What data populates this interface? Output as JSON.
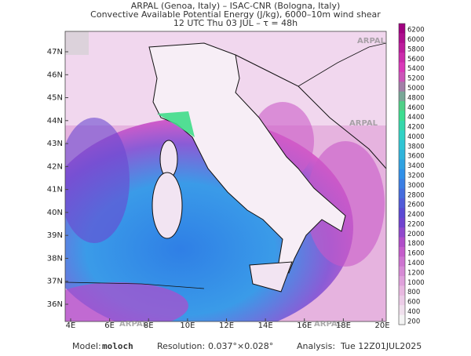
{
  "header": {
    "lines": [
      "ARPAL (Genoa, Italy)  –  ISAC-CNR (Bologna, Italy)",
      "Convective Available Potential Energy (J/kg), 6000–10m wind shear",
      "12 UTC Thu 03 JUL  –  τ = 48h"
    ]
  },
  "map": {
    "lon_labels": [
      "4E",
      "6E",
      "8E",
      "10E",
      "12E",
      "14E",
      "16E",
      "18E",
      "20E"
    ],
    "lat_labels": [
      "47N",
      "46N",
      "45N",
      "44N",
      "43N",
      "42N",
      "41N",
      "40N",
      "39N",
      "38N",
      "37N",
      "36N"
    ],
    "watermark": "ARPAL"
  },
  "colorbar": {
    "labels": [
      6200,
      6000,
      5800,
      5600,
      5400,
      5200,
      5000,
      4800,
      4600,
      4400,
      4200,
      4000,
      3800,
      3600,
      3400,
      3200,
      3000,
      2800,
      2600,
      2400,
      2200,
      2000,
      1800,
      1600,
      1400,
      1200,
      1000,
      800,
      600,
      400,
      200
    ]
  },
  "footer": {
    "model_label": "Model:",
    "model": "moloch",
    "resolution_label": "Resolution:",
    "resolution": "0.037°×0.028°",
    "analysis_label": "Analysis:",
    "analysis": "Tue 12Z01JUL2025"
  }
}
